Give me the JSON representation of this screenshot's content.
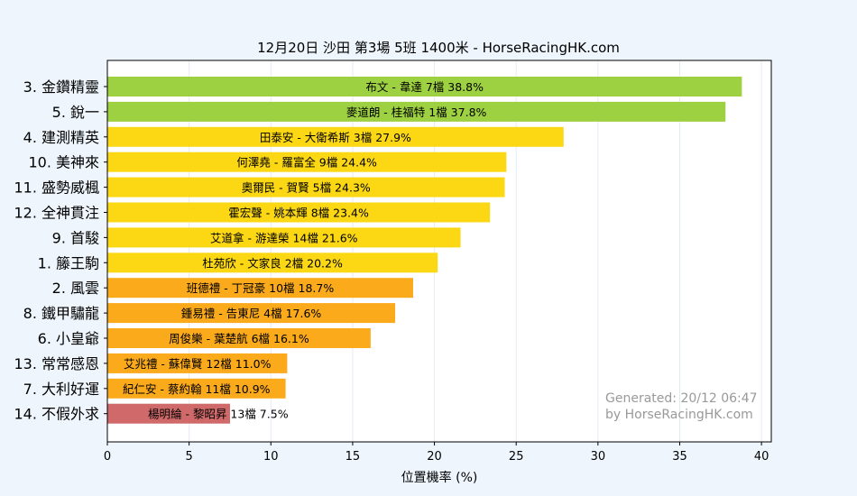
{
  "chart_data": {
    "type": "bar",
    "orientation": "horizontal",
    "title": "12月20日  沙田  第3場  5班  1400米 - HorseRacingHK.com",
    "xlabel": "位置機率 (%)",
    "ylabel": "",
    "xlim": [
      0,
      40.6
    ],
    "xticks": [
      "0",
      "5",
      "10",
      "15",
      "20",
      "25",
      "30",
      "35",
      "40"
    ],
    "grid": "vertical",
    "categories": [
      "3. 金鑽精靈",
      "5. 銳一",
      "4. 建測精英",
      "10. 美神來",
      "11. 盛勢威楓",
      "12. 全神貫注",
      "9. 首駿",
      "1. 籐王駒",
      "2. 風雲",
      "8. 鐵甲驌龍",
      "6. 小皇爺",
      "13. 常常感恩",
      "7. 大利好運",
      "14. 不假外求"
    ],
    "values": [
      38.8,
      37.8,
      27.9,
      24.4,
      24.3,
      23.4,
      21.6,
      20.2,
      18.7,
      17.6,
      16.1,
      11.0,
      10.9,
      7.5
    ],
    "bar_labels": [
      "布文 - 韋達 7檔  38.8%",
      "麥道朗 - 桂福特 1檔  37.8%",
      "田泰安 - 大衛希斯 3檔  27.9%",
      "何澤堯 - 羅富全 9檔  24.4%",
      "奧爾民 - 賀賢 5檔  24.3%",
      "霍宏聲 - 姚本輝 8檔  23.4%",
      "艾道拿 - 游達榮 14檔  21.6%",
      "杜苑欣 - 文家良 2檔  20.2%",
      "班德禮 - 丁冠豪 10檔  18.7%",
      "鍾易禮 - 告東尼 4檔  17.6%",
      "周俊樂 - 葉楚航 6檔  16.1%",
      "艾兆禮 - 蘇偉賢 12檔  11.0%",
      "紀仁安 - 蔡約翰 11檔  10.9%",
      "楊明綸 - 黎昭昇 13檔  7.5%"
    ],
    "bar_colors": [
      "#9ed142",
      "#9ed142",
      "#fcd814",
      "#fcd814",
      "#fcd814",
      "#fcd814",
      "#fcd814",
      "#fcd814",
      "#fbaa1c",
      "#fbaa1c",
      "#fbaa1c",
      "#fbaa1c",
      "#fbaa1c",
      "#d06a6a"
    ],
    "annotations": [
      "Generated: 20/12 06:47",
      "by HorseRacingHK.com"
    ],
    "colors": {
      "background": "#eef5fc",
      "plot_background": "#ffffff",
      "grid": "#e4ebf3",
      "text": "#000000",
      "annotation": "#999999"
    }
  }
}
